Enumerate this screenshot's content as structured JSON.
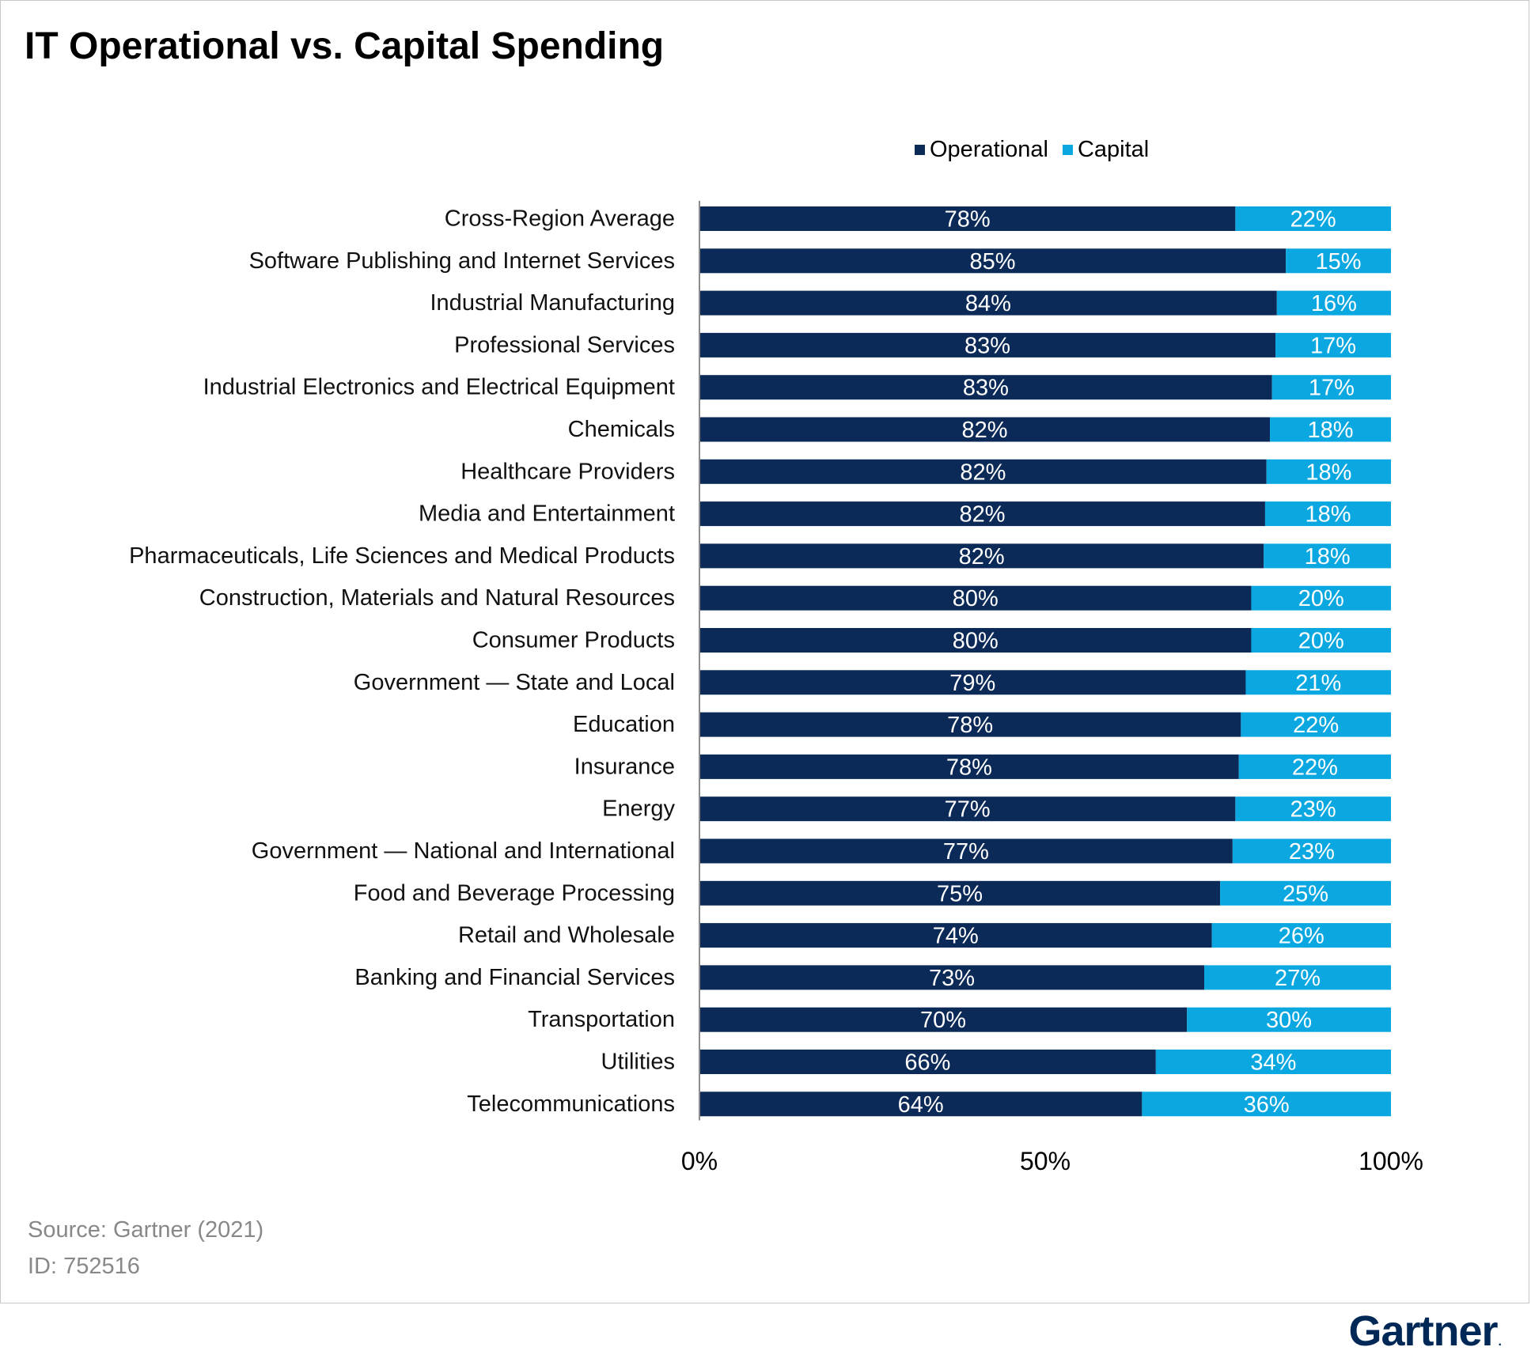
{
  "header": {
    "title": "IT Operational vs. Capital Spending"
  },
  "footer": {
    "source": "Source: Gartner (2021)",
    "id": "ID: 752516",
    "brand": "Gartner",
    "brand_mark": "."
  },
  "colors": {
    "operational": "#0b2a57",
    "capital": "#0aa7e0",
    "label_text": "#ffffff"
  },
  "chart_data": {
    "type": "bar",
    "orientation": "horizontal",
    "stacked": "percent",
    "title": "IT Operational vs. Capital Spending",
    "legend_position": "top",
    "xlim": [
      0,
      100
    ],
    "x_ticks": [
      "0%",
      "50%",
      "100%"
    ],
    "grid": false,
    "categories": [
      "Cross-Region Average",
      "Software Publishing and Internet Services",
      "Industrial Manufacturing",
      "Professional Services",
      "Industrial Electronics and Electrical Equipment",
      "Chemicals",
      "Healthcare Providers",
      "Media and Entertainment",
      "Pharmaceuticals, Life Sciences and Medical Products",
      "Construction, Materials and Natural Resources",
      "Consumer Products",
      "Government  — State and Local",
      "Education",
      "Insurance",
      "Energy",
      "Government  — National and International",
      "Food and Beverage Processing",
      "Retail and Wholesale",
      "Banking and Financial Services",
      "Transportation",
      "Utilities",
      "Telecommunications"
    ],
    "series": [
      {
        "name": "Operational",
        "values": [
          77.5,
          84.8,
          83.5,
          83.3,
          82.8,
          82.5,
          82.0,
          81.8,
          81.6,
          79.8,
          79.8,
          79.0,
          78.3,
          78.0,
          77.5,
          77.1,
          75.3,
          74.1,
          73.0,
          70.5,
          66.0,
          64.0
        ],
        "labels": [
          "78%",
          "85%",
          "84%",
          "83%",
          "83%",
          "82%",
          "82%",
          "82%",
          "82%",
          "80%",
          "80%",
          "79%",
          "78%",
          "78%",
          "77%",
          "77%",
          "75%",
          "74%",
          "73%",
          "70%",
          "66%",
          "64%"
        ]
      },
      {
        "name": "Capital",
        "values": [
          22.5,
          15.2,
          16.5,
          16.7,
          17.2,
          17.5,
          18.0,
          18.2,
          18.4,
          20.2,
          20.2,
          21.0,
          21.7,
          22.0,
          22.5,
          22.9,
          24.7,
          25.9,
          27.0,
          29.5,
          34.0,
          36.0
        ],
        "labels": [
          "22%",
          "15%",
          "16%",
          "17%",
          "17%",
          "18%",
          "18%",
          "18%",
          "18%",
          "20%",
          "20%",
          "21%",
          "22%",
          "22%",
          "23%",
          "23%",
          "25%",
          "26%",
          "27%",
          "30%",
          "34%",
          "36%"
        ]
      }
    ]
  }
}
